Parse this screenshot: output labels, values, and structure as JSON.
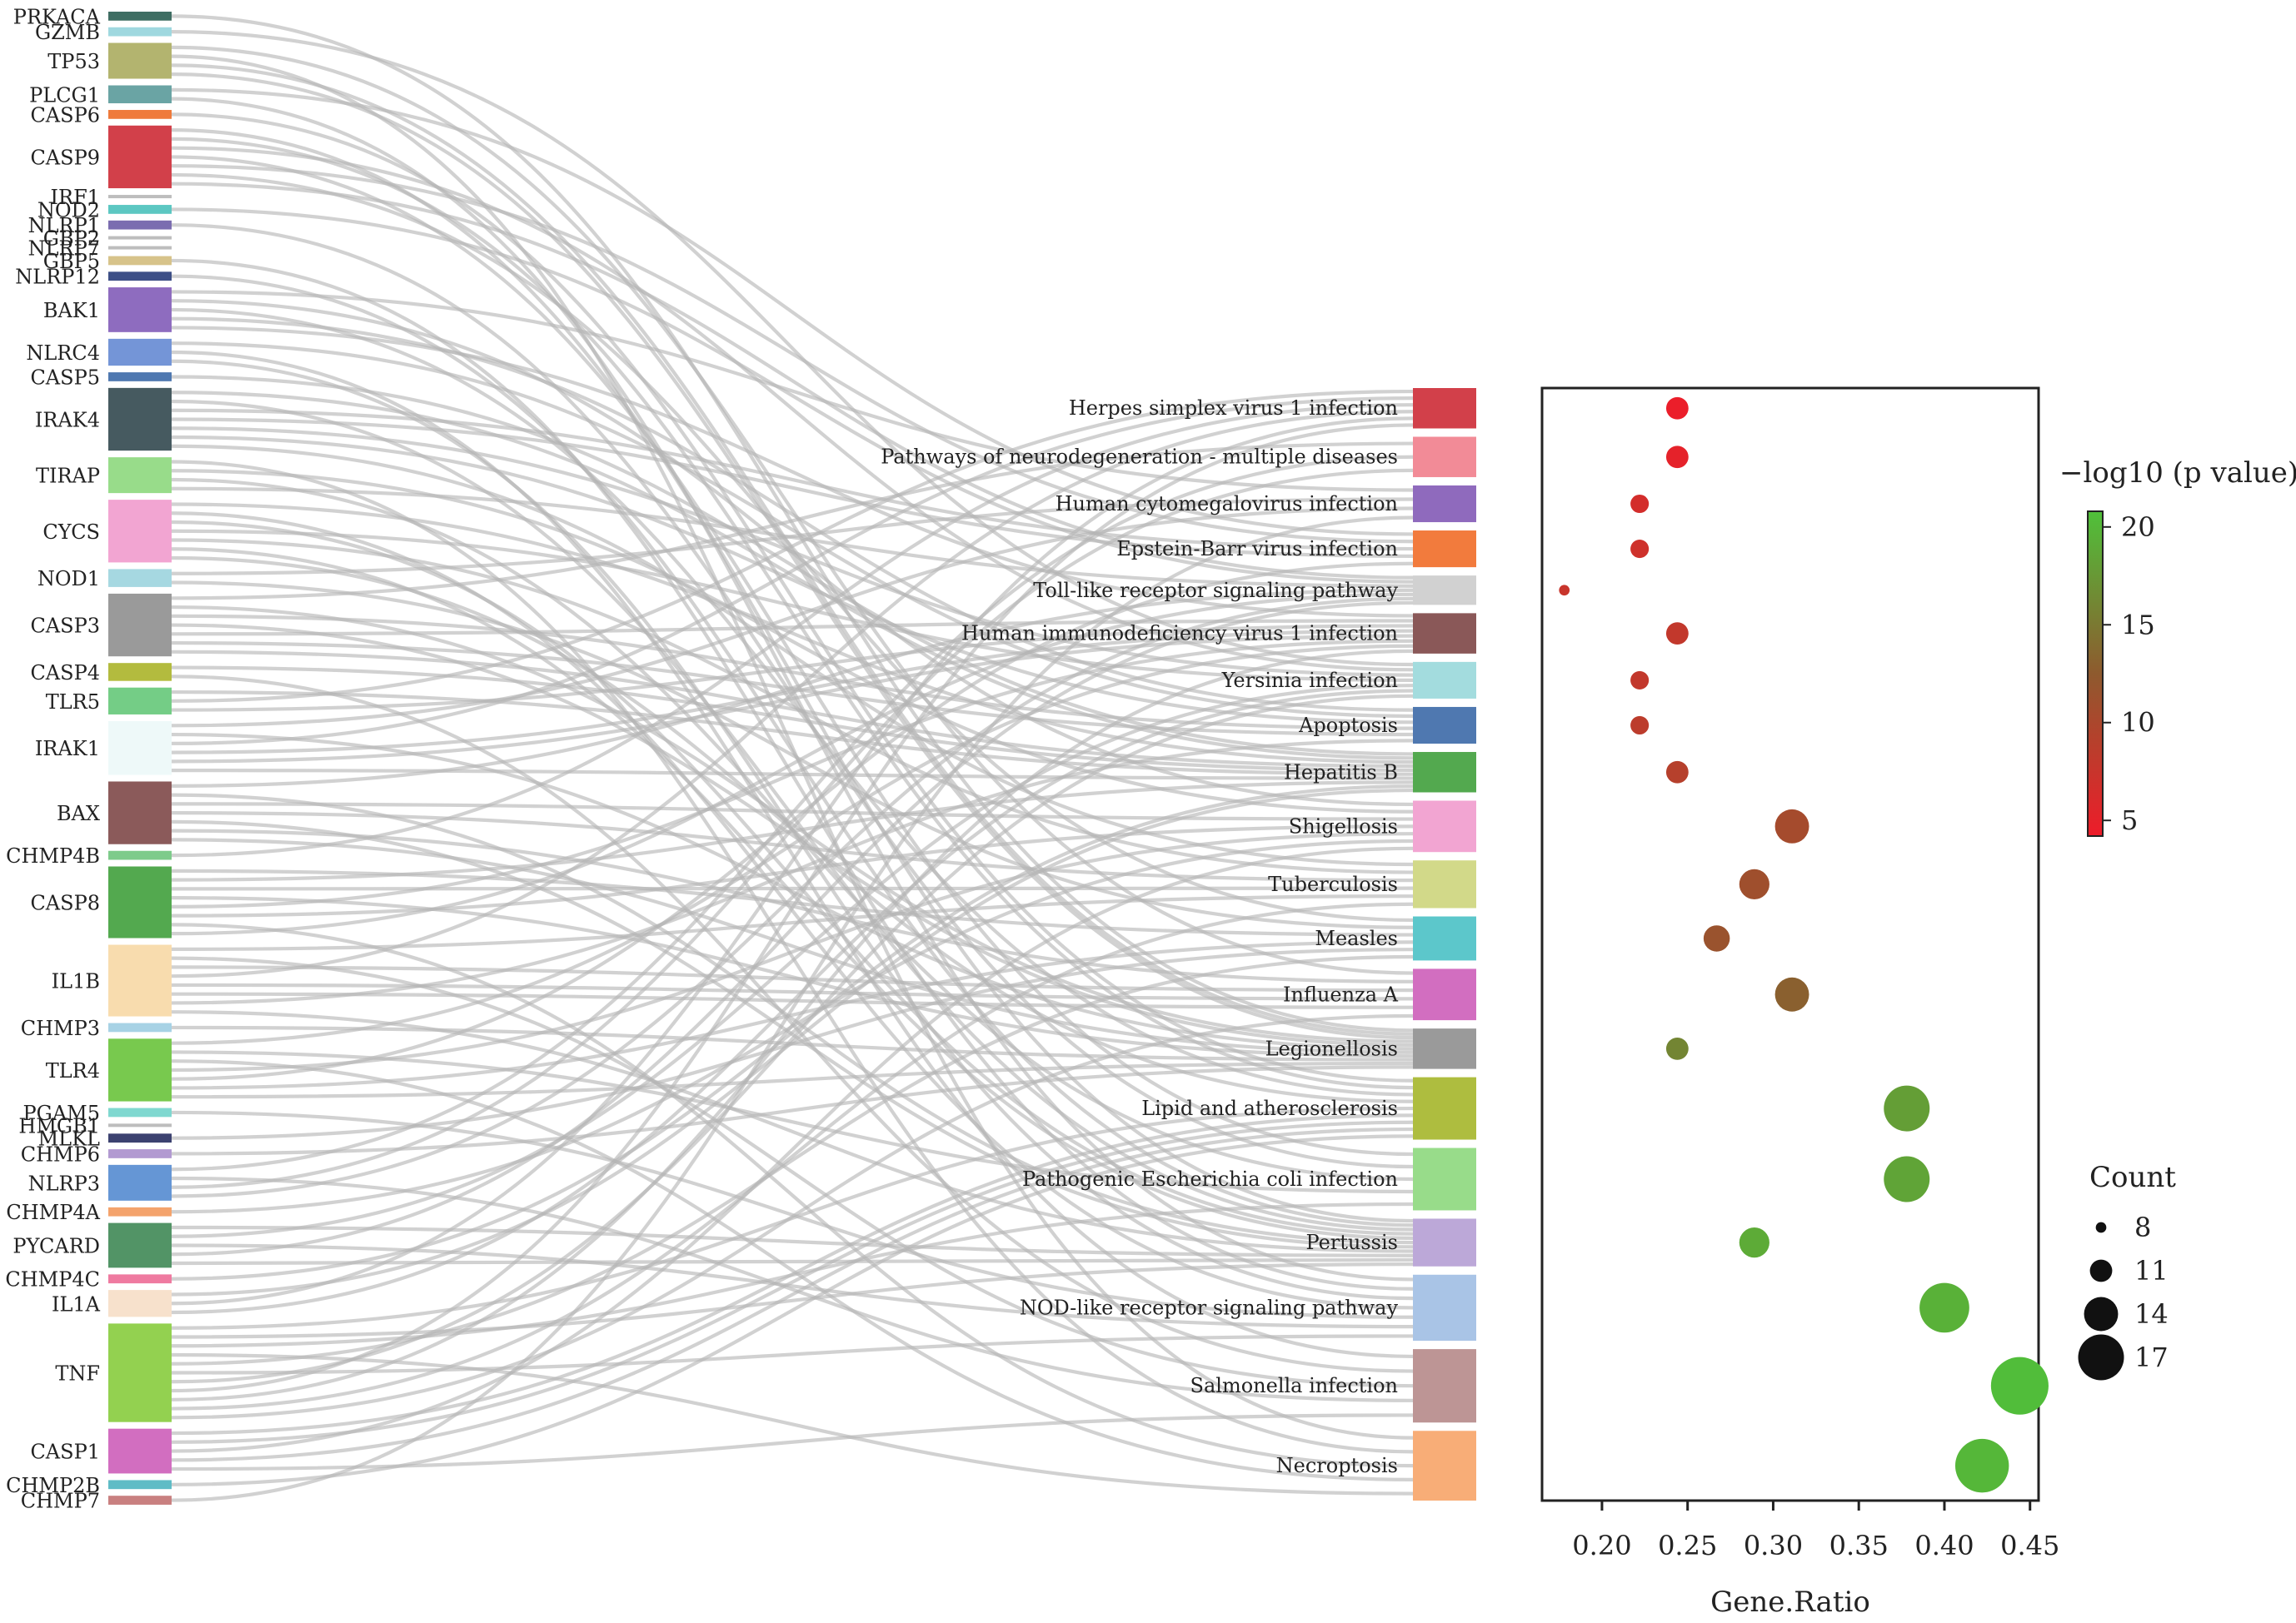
{
  "chart_data": [
    {
      "type": "sankey",
      "genes": [
        {
          "name": "PRKACA",
          "count": 1,
          "color": "#3f6e63"
        },
        {
          "name": "GZMB",
          "count": 1,
          "color": "#9fd8df"
        },
        {
          "name": "TP53",
          "count": 4,
          "color": "#b3b46f"
        },
        {
          "name": "PLCG1",
          "count": 2,
          "color": "#6aa4a4"
        },
        {
          "name": "CASP6",
          "count": 1,
          "color": "#ef7a3b"
        },
        {
          "name": "CASP9",
          "count": 7,
          "color": "#d2404a"
        },
        {
          "name": "IRF1",
          "count": 0,
          "color": "#bdbdbd"
        },
        {
          "name": "NOD2",
          "count": 1,
          "color": "#5cc7c2"
        },
        {
          "name": "NLRP1",
          "count": 1,
          "color": "#7b6db0"
        },
        {
          "name": "GBP2",
          "count": 0,
          "color": "#bdbdbd"
        },
        {
          "name": "NLRP7",
          "count": 0,
          "color": "#bdbdbd"
        },
        {
          "name": "GBP5",
          "count": 1,
          "color": "#d7c38a"
        },
        {
          "name": "NLRP12",
          "count": 1,
          "color": "#3d4f86"
        },
        {
          "name": "BAK1",
          "count": 5,
          "color": "#8e6cbf"
        },
        {
          "name": "NLRC4",
          "count": 3,
          "color": "#7495d7"
        },
        {
          "name": "CASP5",
          "count": 1,
          "color": "#4f78b0"
        },
        {
          "name": "IRAK4",
          "count": 7,
          "color": "#465a60"
        },
        {
          "name": "TIRAP",
          "count": 4,
          "color": "#98dc8a"
        },
        {
          "name": "CYCS",
          "count": 7,
          "color": "#f2a5d2"
        },
        {
          "name": "NOD1",
          "count": 2,
          "color": "#a6d8e1"
        },
        {
          "name": "CASP3",
          "count": 7,
          "color": "#9a9a9a"
        },
        {
          "name": "CASP4",
          "count": 2,
          "color": "#b3bb3e"
        },
        {
          "name": "TLR5",
          "count": 3,
          "color": "#74cd86"
        },
        {
          "name": "IRAK1",
          "count": 6,
          "color": "#eef9f9"
        },
        {
          "name": "BAX",
          "count": 7,
          "color": "#8b5a5a"
        },
        {
          "name": "CHMP4B",
          "count": 1,
          "color": "#7ecb8b"
        },
        {
          "name": "CASP8",
          "count": 8,
          "color": "#53a94f"
        },
        {
          "name": "IL1B",
          "count": 8,
          "color": "#f8dcae"
        },
        {
          "name": "CHMP3",
          "count": 1,
          "color": "#a7d2e5"
        },
        {
          "name": "TLR4",
          "count": 7,
          "color": "#78c94e"
        },
        {
          "name": "PGAM5",
          "count": 1,
          "color": "#7fd8d0"
        },
        {
          "name": "HMGB1",
          "count": 0,
          "color": "#bdbdbd"
        },
        {
          "name": "MLKL",
          "count": 1,
          "color": "#3c4270"
        },
        {
          "name": "CHMP6",
          "count": 1,
          "color": "#b29ad1"
        },
        {
          "name": "NLRP3",
          "count": 4,
          "color": "#6596d5"
        },
        {
          "name": "CHMP4A",
          "count": 1,
          "color": "#f4a36c"
        },
        {
          "name": "PYCARD",
          "count": 5,
          "color": "#529466"
        },
        {
          "name": "CHMP4C",
          "count": 1,
          "color": "#ef7aa0"
        },
        {
          "name": "IL1A",
          "count": 3,
          "color": "#f7e1cc"
        },
        {
          "name": "TNF",
          "count": 11,
          "color": "#93d150"
        },
        {
          "name": "CASP1",
          "count": 5,
          "color": "#d26ec0"
        },
        {
          "name": "CHMP2B",
          "count": 1,
          "color": "#5fbcc6"
        },
        {
          "name": "CHMP7",
          "count": 1,
          "color": "#c98080"
        }
      ],
      "pathways": [
        {
          "name": "Herpes simplex virus 1 infection",
          "count": 11,
          "color": "#d2404a"
        },
        {
          "name": "Pathways of neurodegeneration - multiple diseases",
          "count": 11,
          "color": "#f28b97"
        },
        {
          "name": "Human cytomegalovirus infection",
          "count": 10,
          "color": "#8f6abd"
        },
        {
          "name": "Epstein-Barr virus infection",
          "count": 10,
          "color": "#f27b3d"
        },
        {
          "name": "Toll-like receptor signaling pathway",
          "count": 8,
          "color": "#d1d1d1"
        },
        {
          "name": "Human immunodeficiency virus 1 infection",
          "count": 11,
          "color": "#8a5858"
        },
        {
          "name": "Yersinia infection",
          "count": 10,
          "color": "#a3dcde"
        },
        {
          "name": "Apoptosis",
          "count": 10,
          "color": "#4f78b0"
        },
        {
          "name": "Hepatitis B",
          "count": 11,
          "color": "#53a94f"
        },
        {
          "name": "Shigellosis",
          "count": 14,
          "color": "#f2a5d2"
        },
        {
          "name": "Tuberculosis",
          "count": 13,
          "color": "#d2d989"
        },
        {
          "name": "Measles",
          "count": 12,
          "color": "#5cc7cb"
        },
        {
          "name": "Influenza A",
          "count": 14,
          "color": "#d26ec0"
        },
        {
          "name": "Legionellosis",
          "count": 11,
          "color": "#9a9a9a"
        },
        {
          "name": "Lipid and atherosclerosis",
          "count": 17,
          "color": "#aebd3f"
        },
        {
          "name": "Pathogenic Escherichia coli infection",
          "count": 17,
          "color": "#98dc8a"
        },
        {
          "name": "Pertussis",
          "count": 13,
          "color": "#bca8d8"
        },
        {
          "name": "NOD-like receptor signaling pathway",
          "count": 18,
          "color": "#a9c4e6"
        },
        {
          "name": "Salmonella infection",
          "count": 20,
          "color": "#bd9595"
        },
        {
          "name": "Necroptosis",
          "count": 19,
          "color": "#f8ad77"
        }
      ]
    },
    {
      "type": "scatter",
      "xlabel": "Gene.Ratio",
      "xlim": [
        0.165,
        0.455
      ],
      "xticks": [
        0.2,
        0.25,
        0.3,
        0.35,
        0.4,
        0.45
      ],
      "xtick_labels": [
        "0.20",
        "0.25",
        "0.30",
        "0.35",
        "0.40",
        "0.45"
      ],
      "categories": [
        "Herpes simplex virus 1 infection",
        "Pathways of neurodegeneration - multiple diseases",
        "Human cytomegalovirus infection",
        "Epstein-Barr virus infection",
        "Toll-like receptor signaling pathway",
        "Human immunodeficiency virus 1 infection",
        "Yersinia infection",
        "Apoptosis",
        "Hepatitis B",
        "Shigellosis",
        "Tuberculosis",
        "Measles",
        "Influenza A",
        "Legionellosis",
        "Lipid and atherosclerosis",
        "Pathogenic Escherichia coli infection",
        "Pertussis",
        "NOD-like receptor signaling pathway",
        "Salmonella infection",
        "Necroptosis"
      ],
      "gene_ratio": [
        0.244,
        0.244,
        0.222,
        0.222,
        0.178,
        0.244,
        0.222,
        0.222,
        0.244,
        0.311,
        0.289,
        0.267,
        0.311,
        0.244,
        0.378,
        0.378,
        0.289,
        0.4,
        0.444,
        0.422
      ],
      "count": [
        11,
        11,
        10,
        10,
        8,
        11,
        10,
        10,
        11,
        14,
        13,
        12,
        14,
        11,
        17,
        17,
        13,
        18,
        20,
        19
      ],
      "neg_log10_p": [
        4.5,
        5.0,
        6.5,
        7.0,
        7.5,
        8.0,
        8.0,
        8.5,
        9.0,
        10.5,
        11.0,
        11.5,
        13.0,
        16.0,
        18.0,
        18.5,
        19.0,
        19.5,
        20.5,
        20.0
      ],
      "color_scale": {
        "title": "−log10 (p value)",
        "min": 4.2,
        "max": 20.8,
        "low_color": "#ee1c2a",
        "mid_color": "#8e5a2e",
        "high_color": "#4fc13a",
        "ticks": [
          5,
          10,
          15,
          20
        ],
        "tick_labels": [
          "5",
          "10",
          "15",
          "20"
        ]
      },
      "size_legend": {
        "title": "Count",
        "values": [
          8,
          11,
          14,
          17
        ],
        "labels": [
          "8",
          "11",
          "14",
          "17"
        ]
      }
    }
  ]
}
